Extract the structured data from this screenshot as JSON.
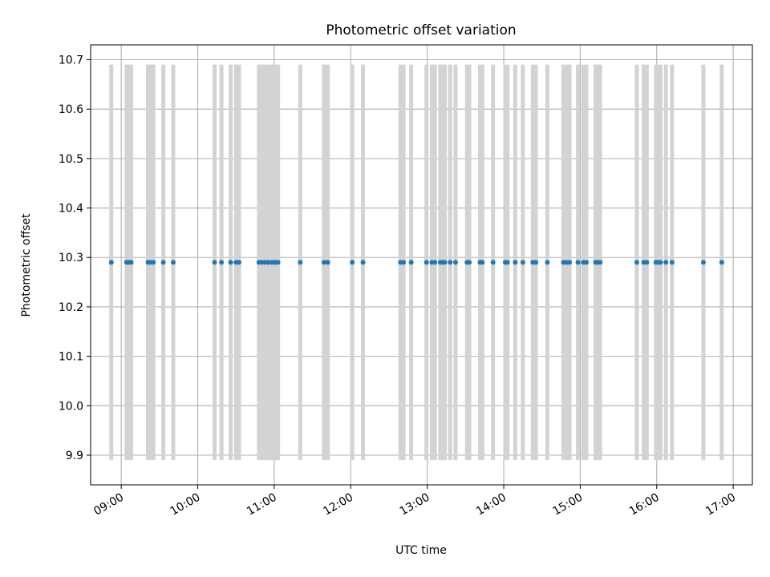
{
  "chart_data": {
    "type": "scatter",
    "title": "Photometric offset variation",
    "xlabel": "UTC time",
    "ylabel": "Photometric offset",
    "grid": true,
    "x_unit": "UTC hour",
    "xlim": [
      8.6,
      17.25
    ],
    "ylim": [
      9.84,
      10.73
    ],
    "x_ticks": [
      {
        "value": 9,
        "label": "09:00"
      },
      {
        "value": 10,
        "label": "10:00"
      },
      {
        "value": 11,
        "label": "11:00"
      },
      {
        "value": 12,
        "label": "12:00"
      },
      {
        "value": 13,
        "label": "13:00"
      },
      {
        "value": 14,
        "label": "14:00"
      },
      {
        "value": 15,
        "label": "15:00"
      },
      {
        "value": 16,
        "label": "16:00"
      },
      {
        "value": 17,
        "label": "17:00"
      }
    ],
    "y_ticks": [
      {
        "value": 9.9,
        "label": "9.9"
      },
      {
        "value": 10.0,
        "label": "10.0"
      },
      {
        "value": 10.1,
        "label": "10.1"
      },
      {
        "value": 10.2,
        "label": "10.2"
      },
      {
        "value": 10.3,
        "label": "10.3"
      },
      {
        "value": 10.4,
        "label": "10.4"
      },
      {
        "value": 10.5,
        "label": "10.5"
      },
      {
        "value": 10.6,
        "label": "10.6"
      },
      {
        "value": 10.7,
        "label": "10.7"
      }
    ],
    "band_range": [
      9.89,
      10.69
    ],
    "band_color": "#d3d3d3",
    "marker_color": "#1f77b4",
    "times": [
      8.87,
      9.07,
      9.1,
      9.13,
      9.35,
      9.38,
      9.42,
      9.55,
      9.68,
      10.22,
      10.31,
      10.43,
      10.5,
      10.54,
      10.8,
      10.84,
      10.88,
      10.92,
      10.97,
      11.0,
      11.02,
      11.05,
      11.34,
      11.65,
      11.7,
      12.02,
      12.16,
      12.65,
      12.69,
      12.79,
      12.99,
      13.06,
      13.1,
      13.17,
      13.2,
      13.23,
      13.3,
      13.37,
      13.52,
      13.55,
      13.69,
      13.72,
      13.86,
      14.02,
      14.05,
      14.15,
      14.25,
      14.38,
      14.42,
      14.57,
      14.78,
      14.82,
      14.86,
      14.97,
      15.04,
      15.08,
      15.2,
      15.23,
      15.26,
      15.74,
      15.83,
      15.87,
      15.99,
      16.02,
      16.05,
      16.12,
      16.2,
      16.61,
      16.85
    ],
    "offsets": [
      10.29,
      10.29,
      10.29,
      10.29,
      10.29,
      10.29,
      10.29,
      10.29,
      10.29,
      10.29,
      10.29,
      10.29,
      10.29,
      10.29,
      10.29,
      10.29,
      10.29,
      10.29,
      10.29,
      10.29,
      10.29,
      10.29,
      10.29,
      10.29,
      10.29,
      10.29,
      10.29,
      10.29,
      10.29,
      10.29,
      10.29,
      10.29,
      10.29,
      10.29,
      10.29,
      10.29,
      10.29,
      10.29,
      10.29,
      10.29,
      10.29,
      10.29,
      10.29,
      10.29,
      10.29,
      10.29,
      10.29,
      10.29,
      10.29,
      10.29,
      10.29,
      10.29,
      10.29,
      10.29,
      10.29,
      10.29,
      10.29,
      10.29,
      10.29,
      10.29,
      10.29,
      10.29,
      10.29,
      10.29,
      10.29,
      10.29,
      10.29,
      10.29,
      10.29
    ]
  }
}
